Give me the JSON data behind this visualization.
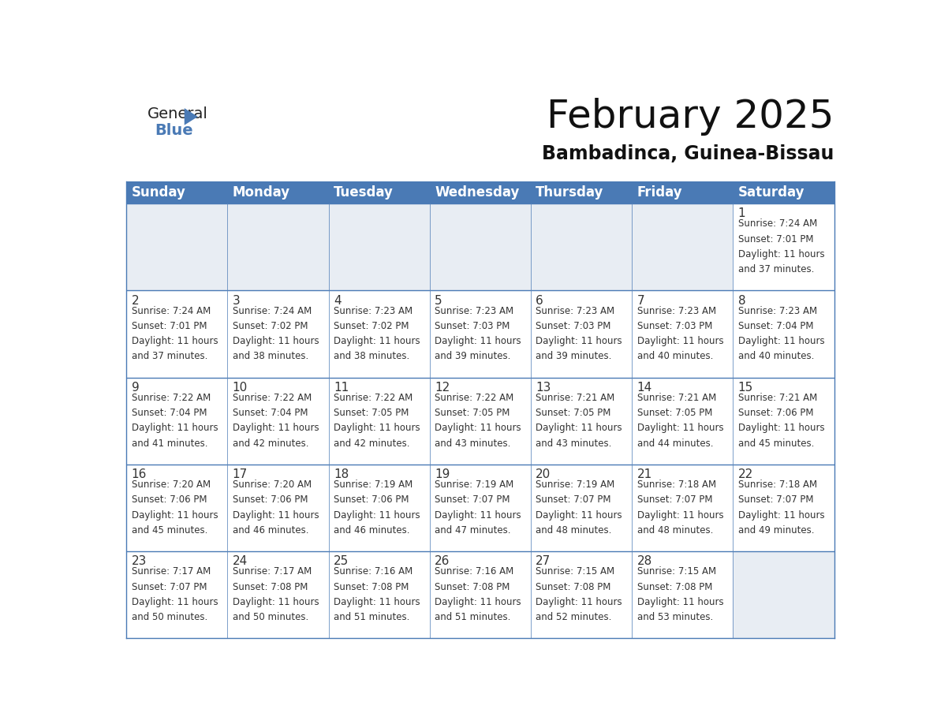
{
  "title": "February 2025",
  "subtitle": "Bambadinca, Guinea-Bissau",
  "header_color": "#4a7ab5",
  "header_text_color": "#FFFFFF",
  "cell_bg_color": "#e8edf3",
  "cell_filled_bg": "#FFFFFF",
  "cell_border_color": "#4a7ab5",
  "day_text_color": "#333333",
  "info_text_color": "#333333",
  "days_of_week": [
    "Sunday",
    "Monday",
    "Tuesday",
    "Wednesday",
    "Thursday",
    "Friday",
    "Saturday"
  ],
  "weeks": [
    [
      null,
      null,
      null,
      null,
      null,
      null,
      1
    ],
    [
      2,
      3,
      4,
      5,
      6,
      7,
      8
    ],
    [
      9,
      10,
      11,
      12,
      13,
      14,
      15
    ],
    [
      16,
      17,
      18,
      19,
      20,
      21,
      22
    ],
    [
      23,
      24,
      25,
      26,
      27,
      28,
      null
    ]
  ],
  "cell_data": {
    "1": {
      "sunrise": "7:24 AM",
      "sunset": "7:01 PM",
      "daylight_h": "11 hours",
      "daylight_m": "and 37 minutes."
    },
    "2": {
      "sunrise": "7:24 AM",
      "sunset": "7:01 PM",
      "daylight_h": "11 hours",
      "daylight_m": "and 37 minutes."
    },
    "3": {
      "sunrise": "7:24 AM",
      "sunset": "7:02 PM",
      "daylight_h": "11 hours",
      "daylight_m": "and 38 minutes."
    },
    "4": {
      "sunrise": "7:23 AM",
      "sunset": "7:02 PM",
      "daylight_h": "11 hours",
      "daylight_m": "and 38 minutes."
    },
    "5": {
      "sunrise": "7:23 AM",
      "sunset": "7:03 PM",
      "daylight_h": "11 hours",
      "daylight_m": "and 39 minutes."
    },
    "6": {
      "sunrise": "7:23 AM",
      "sunset": "7:03 PM",
      "daylight_h": "11 hours",
      "daylight_m": "and 39 minutes."
    },
    "7": {
      "sunrise": "7:23 AM",
      "sunset": "7:03 PM",
      "daylight_h": "11 hours",
      "daylight_m": "and 40 minutes."
    },
    "8": {
      "sunrise": "7:23 AM",
      "sunset": "7:04 PM",
      "daylight_h": "11 hours",
      "daylight_m": "and 40 minutes."
    },
    "9": {
      "sunrise": "7:22 AM",
      "sunset": "7:04 PM",
      "daylight_h": "11 hours",
      "daylight_m": "and 41 minutes."
    },
    "10": {
      "sunrise": "7:22 AM",
      "sunset": "7:04 PM",
      "daylight_h": "11 hours",
      "daylight_m": "and 42 minutes."
    },
    "11": {
      "sunrise": "7:22 AM",
      "sunset": "7:05 PM",
      "daylight_h": "11 hours",
      "daylight_m": "and 42 minutes."
    },
    "12": {
      "sunrise": "7:22 AM",
      "sunset": "7:05 PM",
      "daylight_h": "11 hours",
      "daylight_m": "and 43 minutes."
    },
    "13": {
      "sunrise": "7:21 AM",
      "sunset": "7:05 PM",
      "daylight_h": "11 hours",
      "daylight_m": "and 43 minutes."
    },
    "14": {
      "sunrise": "7:21 AM",
      "sunset": "7:05 PM",
      "daylight_h": "11 hours",
      "daylight_m": "and 44 minutes."
    },
    "15": {
      "sunrise": "7:21 AM",
      "sunset": "7:06 PM",
      "daylight_h": "11 hours",
      "daylight_m": "and 45 minutes."
    },
    "16": {
      "sunrise": "7:20 AM",
      "sunset": "7:06 PM",
      "daylight_h": "11 hours",
      "daylight_m": "and 45 minutes."
    },
    "17": {
      "sunrise": "7:20 AM",
      "sunset": "7:06 PM",
      "daylight_h": "11 hours",
      "daylight_m": "and 46 minutes."
    },
    "18": {
      "sunrise": "7:19 AM",
      "sunset": "7:06 PM",
      "daylight_h": "11 hours",
      "daylight_m": "and 46 minutes."
    },
    "19": {
      "sunrise": "7:19 AM",
      "sunset": "7:07 PM",
      "daylight_h": "11 hours",
      "daylight_m": "and 47 minutes."
    },
    "20": {
      "sunrise": "7:19 AM",
      "sunset": "7:07 PM",
      "daylight_h": "11 hours",
      "daylight_m": "and 48 minutes."
    },
    "21": {
      "sunrise": "7:18 AM",
      "sunset": "7:07 PM",
      "daylight_h": "11 hours",
      "daylight_m": "and 48 minutes."
    },
    "22": {
      "sunrise": "7:18 AM",
      "sunset": "7:07 PM",
      "daylight_h": "11 hours",
      "daylight_m": "and 49 minutes."
    },
    "23": {
      "sunrise": "7:17 AM",
      "sunset": "7:07 PM",
      "daylight_h": "11 hours",
      "daylight_m": "and 50 minutes."
    },
    "24": {
      "sunrise": "7:17 AM",
      "sunset": "7:08 PM",
      "daylight_h": "11 hours",
      "daylight_m": "and 50 minutes."
    },
    "25": {
      "sunrise": "7:16 AM",
      "sunset": "7:08 PM",
      "daylight_h": "11 hours",
      "daylight_m": "and 51 minutes."
    },
    "26": {
      "sunrise": "7:16 AM",
      "sunset": "7:08 PM",
      "daylight_h": "11 hours",
      "daylight_m": "and 51 minutes."
    },
    "27": {
      "sunrise": "7:15 AM",
      "sunset": "7:08 PM",
      "daylight_h": "11 hours",
      "daylight_m": "and 52 minutes."
    },
    "28": {
      "sunrise": "7:15 AM",
      "sunset": "7:08 PM",
      "daylight_h": "11 hours",
      "daylight_m": "and 53 minutes."
    }
  },
  "logo_general_color": "#222222",
  "logo_blue_color": "#4a7ab5",
  "logo_triangle_color": "#4a7ab5",
  "title_fontsize": 36,
  "subtitle_fontsize": 17,
  "header_fontsize": 12,
  "day_num_fontsize": 11,
  "info_fontsize": 8.5
}
